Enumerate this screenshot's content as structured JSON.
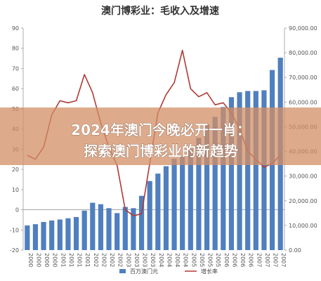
{
  "chart_data": {
    "type": "bar",
    "title": "澳门博彩业：毛收入及增速",
    "x": [
      2000,
      2000.25,
      2000.5,
      2000.75,
      2001,
      2001.25,
      2001.5,
      2001.75,
      2002,
      2002.25,
      2002.5,
      2002.75,
      2003,
      2003.25,
      2003.5,
      2003.75,
      2004,
      2004.25,
      2004.5,
      2004.75,
      2005,
      2005.25,
      2005.5,
      2005.75,
      2006,
      2006.25,
      2006.5,
      2006.75,
      2007,
      2007.25,
      2007.5,
      2007.75
    ],
    "series": [
      {
        "name": "百万澳门元",
        "axis": "right",
        "values": [
          10000,
          10500,
          11400,
          12000,
          12400,
          12900,
          13400,
          16000,
          19200,
          18600,
          17000,
          15000,
          17500,
          17000,
          22000,
          28000,
          31000,
          34000,
          37000,
          38000,
          41000,
          45500,
          51000,
          54000,
          58000,
          62000,
          64000,
          64500,
          64500,
          64800,
          73000,
          78000
        ]
      },
      {
        "name": "增长率",
        "axis": "left",
        "values": [
          27,
          25,
          31,
          47,
          54,
          53,
          54,
          67,
          58,
          43,
          31,
          22,
          0,
          -3,
          -2,
          23,
          48,
          57,
          63,
          79,
          60,
          56,
          58,
          52,
          53,
          48,
          40,
          29,
          25,
          21,
          23,
          27
        ]
      }
    ],
    "x_tick_labels": [
      "2000",
      "2000",
      "2000",
      "2000",
      "2001",
      "2001",
      "2001",
      "2001",
      "2002",
      "2002",
      "2002",
      "2002",
      "2003",
      "2003",
      "2003",
      "2003",
      "2004",
      "2004",
      "2004",
      "2004",
      "2005",
      "2005",
      "2005",
      "2005",
      "2006",
      "2006",
      "2006",
      "2006",
      "2007",
      "2007",
      "2007",
      "2007"
    ],
    "y_left": {
      "ticks": [
        "-20",
        "-10",
        "0",
        "10",
        "20",
        "30",
        "40",
        "50",
        "60",
        "70",
        "80",
        "90"
      ],
      "range": [
        -20,
        90
      ]
    },
    "y_right": {
      "ticks": [
        "0.00",
        "10,000.00",
        "20,000.00",
        "30,000.00",
        "40,000.00",
        "50,000.00",
        "60,000.00",
        "70,000.00",
        "80,000.00",
        "90,000.00"
      ],
      "range": [
        0,
        90000
      ]
    },
    "legend_position": "bottom-center",
    "grid": false,
    "colors": {
      "bar": "#4f7fbf",
      "line": "#b03a35",
      "overlay": "#d18f66"
    }
  },
  "overlay": {
    "line1": "2024年澳门今晚必开一肖：",
    "line2": "探索澳门博彩业的新趋势"
  }
}
